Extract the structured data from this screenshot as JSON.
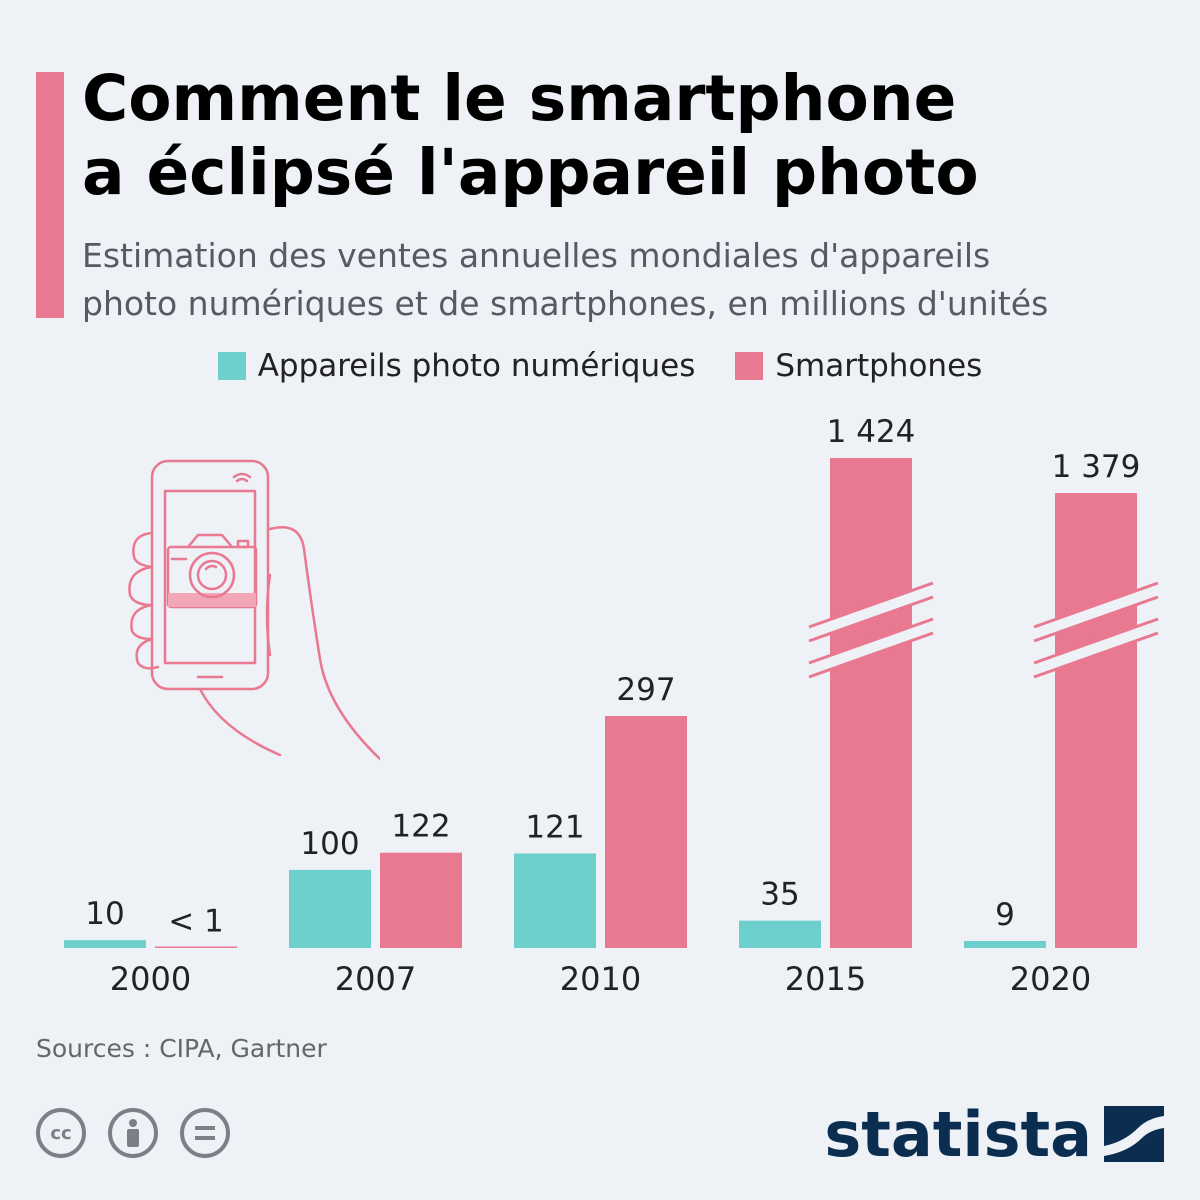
{
  "header": {
    "title_lines": [
      "Comment le smartphone",
      "a éclipsé l'appareil photo"
    ],
    "subtitle_lines": [
      "Estimation des ventes annuelles mondiales d'appareils",
      "photo numériques et de smartphones, en millions d'unités"
    ]
  },
  "colors": {
    "cameras": "#6ccfcb",
    "smartphones": "#e97891",
    "accent": "#e97891",
    "brand": "#0b2d4f"
  },
  "chart_data": {
    "type": "bar",
    "categories": [
      "2000",
      "2007",
      "2010",
      "2015",
      "2020"
    ],
    "series": [
      {
        "name": "Appareils photo numériques",
        "values": [
          10,
          100,
          121,
          35,
          9
        ],
        "labels": [
          "10",
          "100",
          "121",
          "35",
          "9"
        ]
      },
      {
        "name": "Smartphones",
        "values": [
          0.5,
          122,
          297,
          1424,
          1379
        ],
        "labels": [
          "< 1",
          "122",
          "297",
          "1 424",
          "1 379"
        ]
      }
    ],
    "axis_breaks": [
      "2015",
      "2020"
    ],
    "legend": "top-center",
    "grid": false
  },
  "footer": {
    "source": "Sources : CIPA, Gartner",
    "brand": "statista",
    "license_icons": [
      "cc-icon",
      "attribution-icon",
      "no-derivatives-icon"
    ]
  }
}
